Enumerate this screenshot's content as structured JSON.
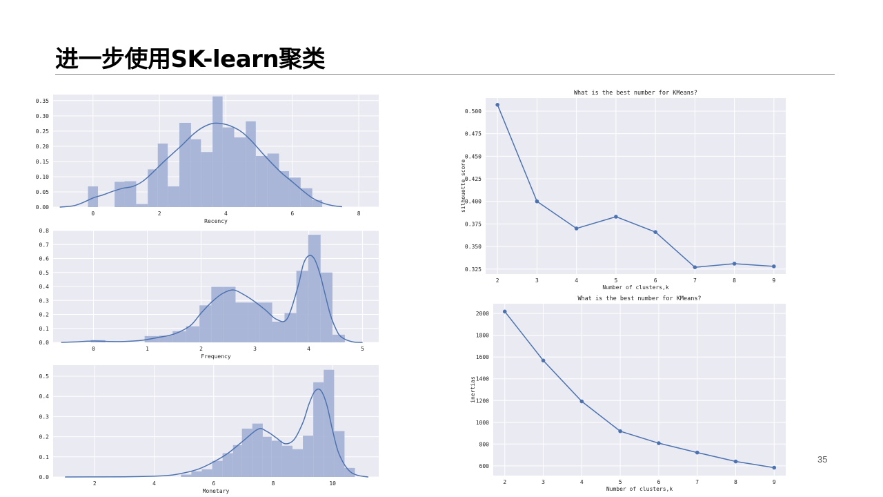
{
  "slide": {
    "title": "进一步使用SK-learn聚类",
    "page_number": "35"
  },
  "colors": {
    "plot_bg": "#eaeaf2",
    "grid": "#ffffff",
    "bar": "#a5b3d6",
    "line": "#4c72b0"
  },
  "chart_data": [
    {
      "id": "recency",
      "type": "bar",
      "xlabel": "Recency",
      "ylabel": "",
      "title": "",
      "xlim": [
        -1.2,
        8.6
      ],
      "ylim": [
        0,
        0.37
      ],
      "xticks": [
        0,
        2,
        4,
        6,
        8
      ],
      "yticks": [
        0.0,
        0.05,
        0.1,
        0.15,
        0.2,
        0.25,
        0.3,
        0.35
      ],
      "ytick_labels": [
        "0.00",
        "0.05",
        "0.10",
        "0.15",
        "0.20",
        "0.25",
        "0.30",
        "0.35"
      ],
      "bins": [
        {
          "x0": -0.15,
          "x1": 0.15,
          "value": 0.068
        },
        {
          "x0": 0.65,
          "x1": 0.95,
          "value": 0.083
        },
        {
          "x0": 0.95,
          "x1": 1.3,
          "value": 0.085
        },
        {
          "x0": 1.3,
          "x1": 1.65,
          "value": 0.01
        },
        {
          "x0": 1.65,
          "x1": 1.95,
          "value": 0.124
        },
        {
          "x0": 1.95,
          "x1": 2.25,
          "value": 0.209
        },
        {
          "x0": 2.25,
          "x1": 2.6,
          "value": 0.068
        },
        {
          "x0": 2.6,
          "x1": 2.95,
          "value": 0.277
        },
        {
          "x0": 2.95,
          "x1": 3.25,
          "value": 0.223
        },
        {
          "x0": 3.25,
          "x1": 3.6,
          "value": 0.181
        },
        {
          "x0": 3.6,
          "x1": 3.9,
          "value": 0.364
        },
        {
          "x0": 3.9,
          "x1": 4.25,
          "value": 0.262
        },
        {
          "x0": 4.25,
          "x1": 4.6,
          "value": 0.229
        },
        {
          "x0": 4.6,
          "x1": 4.9,
          "value": 0.282
        },
        {
          "x0": 4.9,
          "x1": 5.25,
          "value": 0.168
        },
        {
          "x0": 5.25,
          "x1": 5.6,
          "value": 0.176
        },
        {
          "x0": 5.6,
          "x1": 5.9,
          "value": 0.118
        },
        {
          "x0": 5.9,
          "x1": 6.25,
          "value": 0.097
        },
        {
          "x0": 6.25,
          "x1": 6.6,
          "value": 0.062
        },
        {
          "x0": 6.6,
          "x1": 6.9,
          "value": 0.023
        }
      ],
      "kde": {
        "x": [
          -1.0,
          -0.6,
          -0.3,
          0.0,
          0.3,
          0.6,
          0.9,
          1.2,
          1.5,
          1.8,
          2.1,
          2.4,
          2.7,
          3.0,
          3.3,
          3.6,
          3.9,
          4.2,
          4.5,
          4.8,
          5.1,
          5.4,
          5.7,
          6.0,
          6.3,
          6.6,
          6.9,
          7.2,
          7.5
        ],
        "y": [
          0.0,
          0.004,
          0.015,
          0.03,
          0.04,
          0.052,
          0.062,
          0.068,
          0.085,
          0.114,
          0.146,
          0.176,
          0.206,
          0.238,
          0.262,
          0.275,
          0.274,
          0.264,
          0.245,
          0.214,
          0.177,
          0.142,
          0.11,
          0.083,
          0.055,
          0.03,
          0.014,
          0.005,
          0.001
        ]
      }
    },
    {
      "id": "frequency",
      "type": "bar",
      "xlabel": "Frequency",
      "ylabel": "",
      "title": "",
      "xlim": [
        -0.75,
        5.3
      ],
      "ylim": [
        0,
        0.8
      ],
      "xticks": [
        0,
        1,
        2,
        3,
        4,
        5
      ],
      "yticks": [
        0.0,
        0.1,
        0.2,
        0.3,
        0.4,
        0.5,
        0.6,
        0.7,
        0.8
      ],
      "ytick_labels": [
        "0.0",
        "0.1",
        "0.2",
        "0.3",
        "0.4",
        "0.5",
        "0.6",
        "0.7",
        "0.8"
      ],
      "bins": [
        {
          "x0": -0.05,
          "x1": 0.22,
          "value": 0.016
        },
        {
          "x0": 0.95,
          "x1": 1.22,
          "value": 0.045
        },
        {
          "x0": 1.22,
          "x1": 1.47,
          "value": 0.048
        },
        {
          "x0": 1.47,
          "x1": 1.72,
          "value": 0.08
        },
        {
          "x0": 1.72,
          "x1": 1.97,
          "value": 0.115
        },
        {
          "x0": 1.97,
          "x1": 2.19,
          "value": 0.265
        },
        {
          "x0": 2.19,
          "x1": 2.42,
          "value": 0.398
        },
        {
          "x0": 2.42,
          "x1": 2.64,
          "value": 0.398
        },
        {
          "x0": 2.64,
          "x1": 2.87,
          "value": 0.285
        },
        {
          "x0": 2.87,
          "x1": 3.09,
          "value": 0.285
        },
        {
          "x0": 3.09,
          "x1": 3.32,
          "value": 0.285
        },
        {
          "x0": 3.32,
          "x1": 3.55,
          "value": 0.148
        },
        {
          "x0": 3.55,
          "x1": 3.77,
          "value": 0.21
        },
        {
          "x0": 3.77,
          "x1": 3.99,
          "value": 0.512
        },
        {
          "x0": 3.99,
          "x1": 4.22,
          "value": 0.77
        },
        {
          "x0": 4.22,
          "x1": 4.44,
          "value": 0.5
        },
        {
          "x0": 4.44,
          "x1": 4.67,
          "value": 0.055
        }
      ],
      "kde": {
        "x": [
          -0.6,
          -0.3,
          0.0,
          0.3,
          0.6,
          0.9,
          1.2,
          1.5,
          1.8,
          2.0,
          2.2,
          2.4,
          2.6,
          2.8,
          3.0,
          3.2,
          3.4,
          3.6,
          3.8,
          3.9,
          4.0,
          4.1,
          4.2,
          4.3,
          4.4,
          4.5,
          4.6,
          4.8,
          5.0
        ],
        "y": [
          0.0,
          0.004,
          0.01,
          0.006,
          0.007,
          0.015,
          0.035,
          0.06,
          0.12,
          0.21,
          0.29,
          0.35,
          0.375,
          0.34,
          0.29,
          0.23,
          0.165,
          0.17,
          0.4,
          0.56,
          0.62,
          0.6,
          0.5,
          0.35,
          0.2,
          0.1,
          0.04,
          0.005,
          0.0
        ]
      }
    },
    {
      "id": "monetary",
      "type": "bar",
      "xlabel": "Monetary",
      "ylabel": "",
      "title": "",
      "xlim": [
        0.6,
        11.55
      ],
      "ylim": [
        0,
        0.555
      ],
      "xticks": [
        2,
        4,
        6,
        8,
        10
      ],
      "yticks": [
        0.0,
        0.1,
        0.2,
        0.3,
        0.4,
        0.5
      ],
      "ytick_labels": [
        "0.0",
        "0.1",
        "0.2",
        "0.3",
        "0.4",
        "0.5"
      ],
      "bins": [
        {
          "x0": 4.9,
          "x1": 5.25,
          "value": 0.012
        },
        {
          "x0": 5.25,
          "x1": 5.6,
          "value": 0.028
        },
        {
          "x0": 5.6,
          "x1": 5.95,
          "value": 0.038
        },
        {
          "x0": 5.95,
          "x1": 6.3,
          "value": 0.08
        },
        {
          "x0": 6.3,
          "x1": 6.65,
          "value": 0.118
        },
        {
          "x0": 6.65,
          "x1": 6.95,
          "value": 0.158
        },
        {
          "x0": 6.95,
          "x1": 7.3,
          "value": 0.24
        },
        {
          "x0": 7.3,
          "x1": 7.65,
          "value": 0.265
        },
        {
          "x0": 7.65,
          "x1": 7.95,
          "value": 0.2
        },
        {
          "x0": 7.95,
          "x1": 8.3,
          "value": 0.18
        },
        {
          "x0": 8.3,
          "x1": 8.65,
          "value": 0.155
        },
        {
          "x0": 8.65,
          "x1": 9.0,
          "value": 0.138
        },
        {
          "x0": 9.0,
          "x1": 9.35,
          "value": 0.205
        },
        {
          "x0": 9.35,
          "x1": 9.7,
          "value": 0.47
        },
        {
          "x0": 9.7,
          "x1": 10.05,
          "value": 0.532
        },
        {
          "x0": 10.05,
          "x1": 10.4,
          "value": 0.228
        },
        {
          "x0": 10.4,
          "x1": 10.75,
          "value": 0.045
        }
      ],
      "kde": {
        "x": [
          1.0,
          3.0,
          4.0,
          4.5,
          5.0,
          5.5,
          6.0,
          6.5,
          7.0,
          7.5,
          7.8,
          8.1,
          8.4,
          8.7,
          9.0,
          9.2,
          9.4,
          9.6,
          9.8,
          10.0,
          10.2,
          10.5,
          10.8,
          11.2
        ],
        "y": [
          0.0,
          0.001,
          0.004,
          0.008,
          0.02,
          0.04,
          0.075,
          0.12,
          0.18,
          0.238,
          0.225,
          0.195,
          0.165,
          0.185,
          0.27,
          0.36,
          0.425,
          0.43,
          0.36,
          0.23,
          0.12,
          0.04,
          0.01,
          0.0
        ]
      }
    },
    {
      "id": "silhouette",
      "type": "line",
      "title": "What is the best number for KMeans?",
      "xlabel": "Number of clusters,k",
      "ylabel": "silhouette_score",
      "xlim": [
        1.7,
        9.3
      ],
      "ylim": [
        0.3195,
        0.5145
      ],
      "xticks": [
        2,
        3,
        4,
        5,
        6,
        7,
        8,
        9
      ],
      "yticks": [
        0.325,
        0.35,
        0.375,
        0.4,
        0.425,
        0.45,
        0.475,
        0.5
      ],
      "ytick_labels": [
        "0.325",
        "0.350",
        "0.375",
        "0.400",
        "0.425",
        "0.450",
        "0.475",
        "0.500"
      ],
      "x": [
        2,
        3,
        4,
        5,
        6,
        7,
        8,
        9
      ],
      "y": [
        0.507,
        0.4,
        0.37,
        0.383,
        0.366,
        0.327,
        0.331,
        0.328
      ]
    },
    {
      "id": "inertia",
      "type": "line",
      "title": "What is the best number for KMeans?",
      "xlabel": "Number of clusters,k",
      "ylabel": "inertias",
      "xlim": [
        1.7,
        9.3
      ],
      "ylim": [
        510,
        2090
      ],
      "xticks": [
        2,
        3,
        4,
        5,
        6,
        7,
        8,
        9
      ],
      "yticks": [
        600,
        800,
        1000,
        1200,
        1400,
        1600,
        1800,
        2000
      ],
      "ytick_labels": [
        "600",
        "800",
        "1000",
        "1200",
        "1400",
        "1600",
        "1800",
        "2000"
      ],
      "x": [
        2,
        3,
        4,
        5,
        6,
        7,
        8,
        9
      ],
      "y": [
        2018,
        1568,
        1192,
        918,
        808,
        722,
        640,
        583
      ]
    }
  ]
}
